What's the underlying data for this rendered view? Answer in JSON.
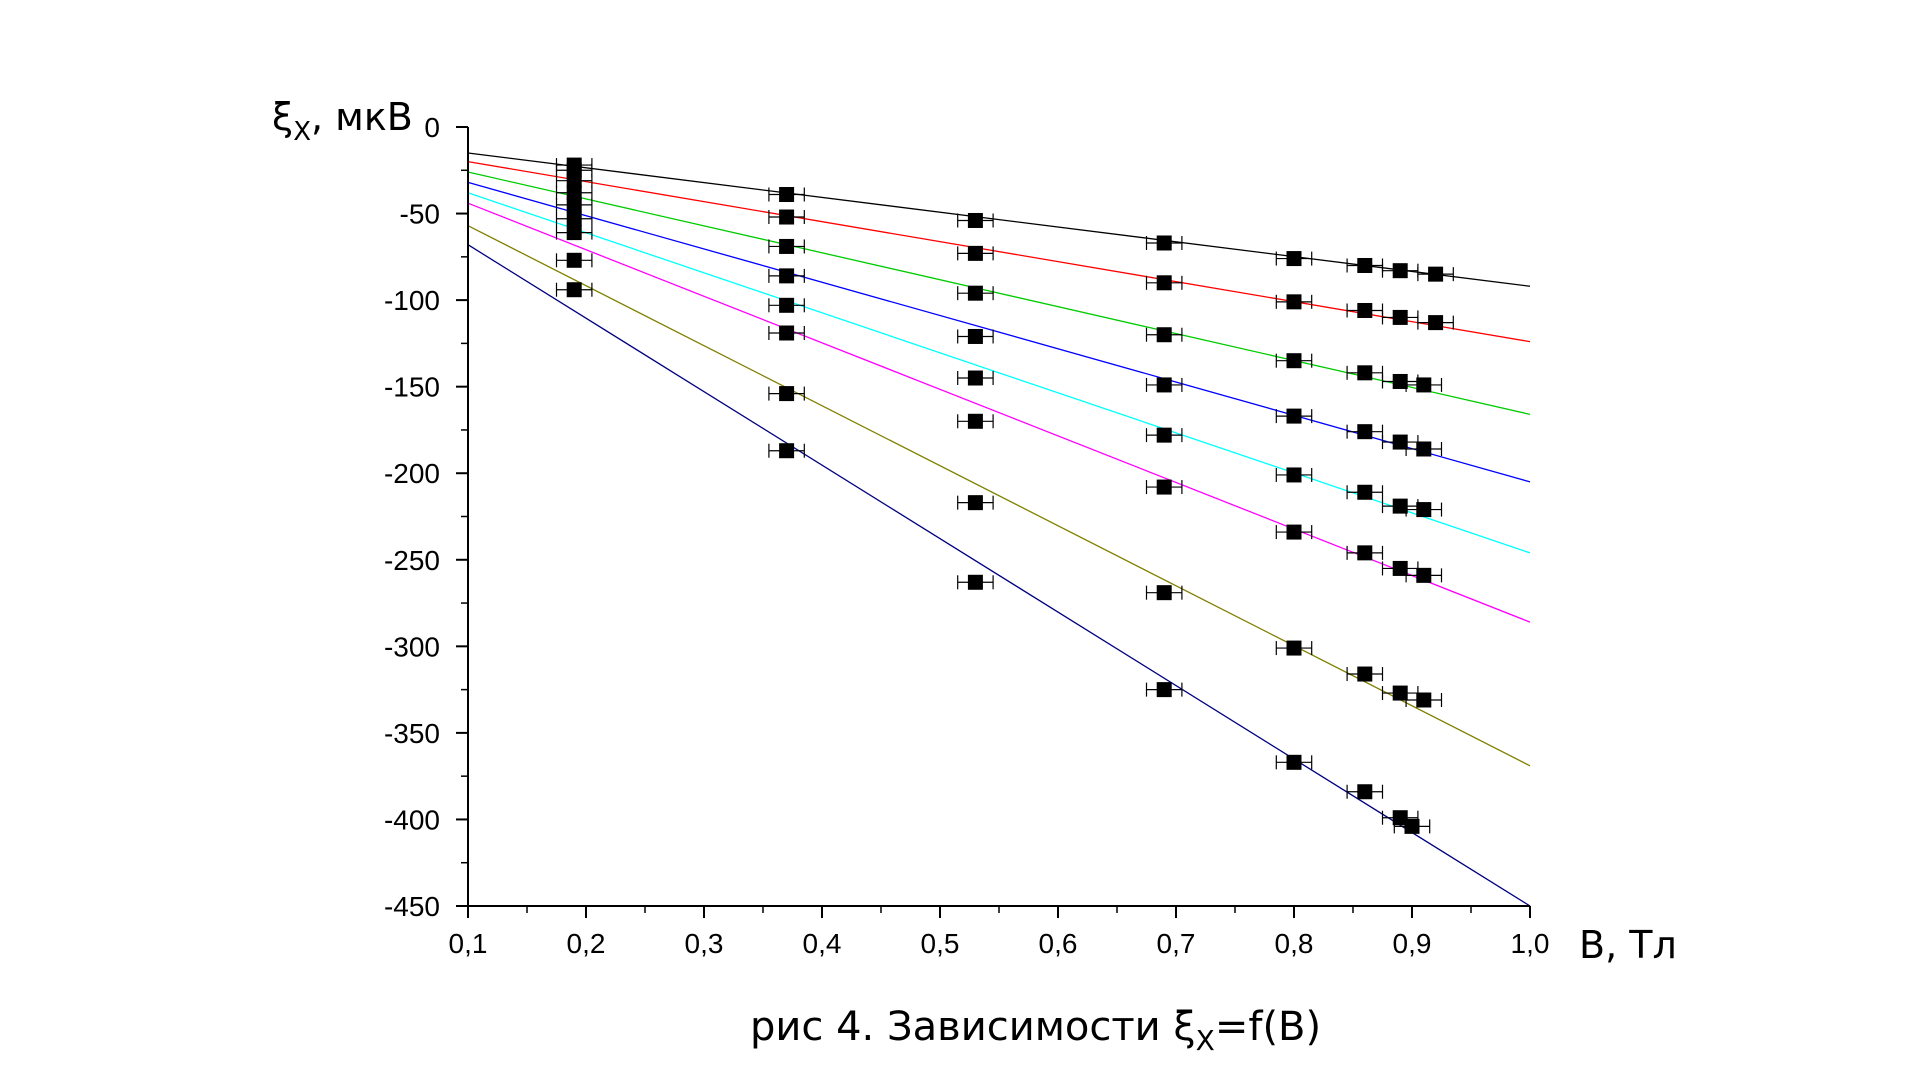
{
  "chart_data": {
    "type": "scatter",
    "title": "",
    "caption": "рис 4. Зависимости ξx=f(B)",
    "caption_parts": {
      "before": "рис 4. Зависимости ",
      "symbol": "ξ",
      "sub": "X",
      "after": "=f(B)"
    },
    "xlabel": "B, Тл",
    "ylabel": "ξX, мкВ",
    "ylabel_parts": {
      "symbol": "ξ",
      "sub": "X",
      "rest": ", мкВ"
    },
    "xlim": [
      0.1,
      1.0
    ],
    "ylim": [
      -450,
      0
    ],
    "x_ticks": [
      0.1,
      0.2,
      0.3,
      0.4,
      0.5,
      0.6,
      0.7,
      0.8,
      0.9,
      1.0
    ],
    "x_tick_labels": [
      "0,1",
      "0,2",
      "0,3",
      "0,4",
      "0,5",
      "0,6",
      "0,7",
      "0,8",
      "0,9",
      "1,0"
    ],
    "y_ticks": [
      0,
      -50,
      -100,
      -150,
      -200,
      -250,
      -300,
      -350,
      -400,
      -450
    ],
    "y_tick_labels": [
      "0",
      "-50",
      "-100",
      "-150",
      "-200",
      "-250",
      "-300",
      "-350",
      "-400",
      "-450"
    ],
    "grid": false,
    "marker": "filled-square",
    "x_error": 0.015,
    "series": [
      {
        "color": "#000000",
        "fit": [
          -15,
          -92
        ],
        "points": [
          [
            0.19,
            -22
          ],
          [
            0.37,
            -39
          ],
          [
            0.53,
            -54
          ],
          [
            0.69,
            -67
          ],
          [
            0.8,
            -76
          ],
          [
            0.86,
            -80
          ],
          [
            0.89,
            -83
          ],
          [
            0.92,
            -85
          ]
        ]
      },
      {
        "color": "#ff0000",
        "fit": [
          -20,
          -124
        ],
        "points": [
          [
            0.19,
            -25
          ],
          [
            0.37,
            -52
          ],
          [
            0.53,
            -73
          ],
          [
            0.69,
            -90
          ],
          [
            0.8,
            -101
          ],
          [
            0.86,
            -106
          ],
          [
            0.89,
            -110
          ],
          [
            0.92,
            -113
          ]
        ]
      },
      {
        "color": "#00cc00",
        "fit": [
          -26,
          -166
        ],
        "points": [
          [
            0.19,
            -31
          ],
          [
            0.37,
            -69
          ],
          [
            0.53,
            -96
          ],
          [
            0.69,
            -120
          ],
          [
            0.8,
            -135
          ],
          [
            0.86,
            -142
          ],
          [
            0.89,
            -147
          ],
          [
            0.91,
            -149
          ]
        ]
      },
      {
        "color": "#0000ff",
        "fit": [
          -32,
          -205
        ],
        "points": [
          [
            0.19,
            -38
          ],
          [
            0.37,
            -86
          ],
          [
            0.53,
            -121
          ],
          [
            0.69,
            -149
          ],
          [
            0.8,
            -167
          ],
          [
            0.86,
            -176
          ],
          [
            0.89,
            -182
          ],
          [
            0.91,
            -186
          ]
        ]
      },
      {
        "color": "#00ffff",
        "fit": [
          -38,
          -246
        ],
        "points": [
          [
            0.19,
            -45
          ],
          [
            0.37,
            -103
          ],
          [
            0.53,
            -145
          ],
          [
            0.69,
            -178
          ],
          [
            0.8,
            -201
          ],
          [
            0.86,
            -211
          ],
          [
            0.89,
            -219
          ],
          [
            0.91,
            -221
          ]
        ]
      },
      {
        "color": "#ff00ff",
        "fit": [
          -44,
          -286
        ],
        "points": [
          [
            0.19,
            -53
          ],
          [
            0.37,
            -119
          ],
          [
            0.53,
            -170
          ],
          [
            0.69,
            -208
          ],
          [
            0.8,
            -234
          ],
          [
            0.86,
            -246
          ],
          [
            0.89,
            -255
          ],
          [
            0.91,
            -259
          ]
        ]
      },
      {
        "color": "#808000",
        "fit": [
          -57,
          -369
        ],
        "points": [
          [
            0.19,
            -61
          ],
          [
            0.37,
            -154
          ],
          [
            0.53,
            -217
          ],
          [
            0.69,
            -269
          ],
          [
            0.8,
            -301
          ],
          [
            0.86,
            -316
          ],
          [
            0.89,
            -327
          ],
          [
            0.91,
            -331
          ]
        ]
      },
      {
        "color": "#000080",
        "fit": [
          -68,
          -450
        ],
        "points": [
          [
            0.19,
            -77
          ],
          [
            0.19,
            -94
          ],
          [
            0.37,
            -187
          ],
          [
            0.53,
            -263
          ],
          [
            0.69,
            -325
          ],
          [
            0.8,
            -367
          ],
          [
            0.86,
            -384
          ],
          [
            0.89,
            -399
          ],
          [
            0.9,
            -404
          ]
        ]
      }
    ]
  }
}
